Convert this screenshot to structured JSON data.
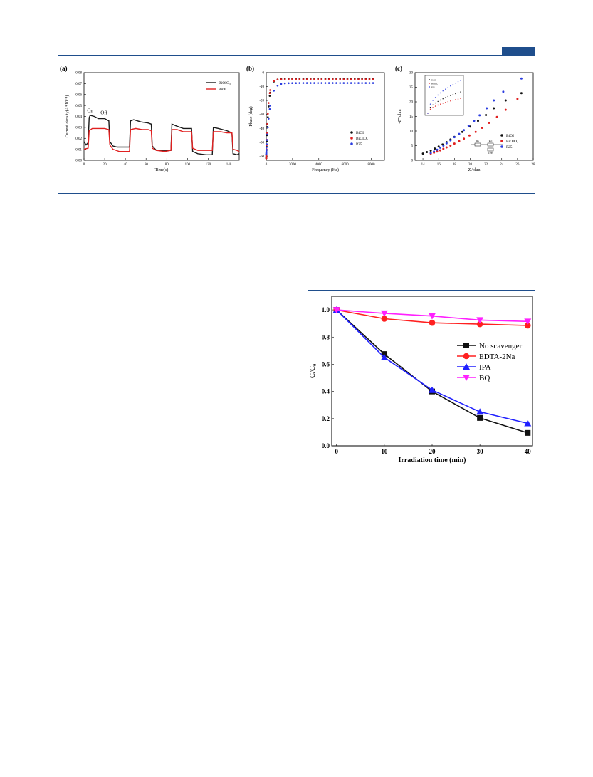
{
  "page": {
    "accent": "#1f4e8c"
  },
  "chart_data": [
    {
      "type": "line",
      "panel": "(a)",
      "xlabel": "Time(s)",
      "ylabel": "Current density(A*10⁻⁴)",
      "xlim": [
        0,
        150
      ],
      "ylim": [
        0,
        0.08
      ],
      "xticks": [
        "0",
        "20",
        "40",
        "60",
        "80",
        "100",
        "120",
        "140"
      ],
      "yticks": [
        "0.00",
        "0.01",
        "0.02",
        "0.03",
        "0.04",
        "0.05",
        "0.06",
        "0.07",
        "0.08"
      ],
      "legend_position": "top-right",
      "annotations": [
        "On",
        "Off"
      ],
      "series": [
        {
          "name": "BiOIO₃",
          "color": "#1a1a1a",
          "points": [
            [
              0,
              0.017
            ],
            [
              2,
              0.014
            ],
            [
              4,
              0.016
            ],
            [
              5,
              0.039
            ],
            [
              6,
              0.041
            ],
            [
              10,
              0.04
            ],
            [
              14,
              0.038
            ],
            [
              20,
              0.038
            ],
            [
              24,
              0.036
            ],
            [
              25,
              0.017
            ],
            [
              28,
              0.013
            ],
            [
              32,
              0.012
            ],
            [
              38,
              0.012
            ],
            [
              44,
              0.012
            ],
            [
              45,
              0.036
            ],
            [
              48,
              0.037
            ],
            [
              55,
              0.035
            ],
            [
              62,
              0.034
            ],
            [
              65,
              0.033
            ],
            [
              66,
              0.013
            ],
            [
              70,
              0.009
            ],
            [
              78,
              0.009
            ],
            [
              84,
              0.009
            ],
            [
              85,
              0.033
            ],
            [
              90,
              0.031
            ],
            [
              96,
              0.029
            ],
            [
              104,
              0.029
            ],
            [
              105,
              0.008
            ],
            [
              110,
              0.006
            ],
            [
              118,
              0.005
            ],
            [
              124,
              0.005
            ],
            [
              125,
              0.03
            ],
            [
              130,
              0.029
            ],
            [
              138,
              0.027
            ],
            [
              143,
              0.025
            ],
            [
              144,
              0.006
            ],
            [
              148,
              0.005
            ],
            [
              150,
              0.006
            ]
          ]
        },
        {
          "name": "BiOI",
          "color": "#e02020",
          "points": [
            [
              0,
              0.01
            ],
            [
              4,
              0.011
            ],
            [
              5,
              0.027
            ],
            [
              8,
              0.029
            ],
            [
              14,
              0.029
            ],
            [
              20,
              0.029
            ],
            [
              24,
              0.028
            ],
            [
              25,
              0.014
            ],
            [
              28,
              0.01
            ],
            [
              34,
              0.008
            ],
            [
              44,
              0.008
            ],
            [
              45,
              0.028
            ],
            [
              50,
              0.029
            ],
            [
              56,
              0.028
            ],
            [
              62,
              0.028
            ],
            [
              65,
              0.027
            ],
            [
              66,
              0.011
            ],
            [
              70,
              0.009
            ],
            [
              78,
              0.008
            ],
            [
              84,
              0.009
            ],
            [
              85,
              0.028
            ],
            [
              90,
              0.028
            ],
            [
              96,
              0.026
            ],
            [
              104,
              0.026
            ],
            [
              105,
              0.011
            ],
            [
              110,
              0.009
            ],
            [
              118,
              0.009
            ],
            [
              124,
              0.009
            ],
            [
              125,
              0.026
            ],
            [
              132,
              0.026
            ],
            [
              138,
              0.025
            ],
            [
              143,
              0.025
            ],
            [
              144,
              0.01
            ],
            [
              148,
              0.009
            ],
            [
              150,
              0.008
            ]
          ]
        }
      ]
    },
    {
      "type": "scatter",
      "panel": "(b)",
      "xlabel": "Frequency (Hz)",
      "ylabel": "Phase (deg)",
      "xlim": [
        0,
        9000
      ],
      "ylim": [
        -63,
        0
      ],
      "xticks": [
        "0",
        "2000",
        "4000",
        "6000",
        "8000"
      ],
      "yticks": [
        "0",
        "-10",
        "-20",
        "-30",
        "-40",
        "-50",
        "-60"
      ],
      "legend_position": "bottom-right",
      "series": [
        {
          "name": "BiOI",
          "color": "#111111"
        },
        {
          "name": "BiOIO₃",
          "color": "#e02020"
        },
        {
          "name": "P25",
          "color": "#2b3de0"
        }
      ]
    },
    {
      "type": "scatter",
      "panel": "(c)",
      "xlabel": "Z'/ohm",
      "ylabel": "-Z''/ohm",
      "xlim": [
        13,
        28
      ],
      "ylim": [
        0,
        30
      ],
      "xticks": [
        "14",
        "16",
        "18",
        "20",
        "22",
        "24",
        "26",
        "28"
      ],
      "yticks": [
        "0",
        "5",
        "10",
        "15",
        "20",
        "25",
        "30"
      ],
      "legend_position": "bottom-right",
      "circuit_labels": [
        "Rs",
        "Rct",
        "CPE"
      ],
      "series": [
        {
          "name": "BiOI",
          "color": "#111111",
          "x": [
            14.0,
            14.5,
            15.0,
            15.5,
            16.0,
            16.5,
            17.0,
            17.5,
            18.0,
            19.0,
            20.0,
            21.0,
            22.0,
            23.0,
            24.5,
            26.5
          ],
          "y": [
            2.3,
            2.8,
            3.3,
            4.0,
            4.7,
            5.4,
            6.2,
            7.1,
            8.0,
            9.7,
            11.5,
            13.5,
            15.5,
            17.8,
            20.5,
            23.0
          ]
        },
        {
          "name": "BiOIO₃",
          "color": "#e02020",
          "x": [
            15.0,
            15.4,
            15.8,
            16.2,
            16.6,
            17.0,
            17.5,
            18.0,
            18.6,
            19.2,
            19.9,
            20.7,
            21.5,
            22.4,
            23.4,
            24.5,
            26.0
          ],
          "y": [
            2.3,
            2.6,
            3.0,
            3.4,
            3.9,
            4.4,
            5.0,
            5.7,
            6.5,
            7.4,
            8.5,
            9.7,
            11.1,
            12.8,
            14.8,
            17.3,
            21.0
          ]
        },
        {
          "name": "P25",
          "color": "#2b3de0",
          "x": [
            15.0,
            15.4,
            15.8,
            16.2,
            16.6,
            17.0,
            17.5,
            18.0,
            18.6,
            19.2,
            19.8,
            20.5,
            21.2,
            22.1,
            23.0,
            24.2,
            26.5
          ],
          "y": [
            2.5,
            3.0,
            3.6,
            4.3,
            5.0,
            5.8,
            6.8,
            7.9,
            9.0,
            10.3,
            11.8,
            13.5,
            15.4,
            17.8,
            20.5,
            23.5,
            28.0
          ]
        }
      ],
      "inset": {
        "series_names": [
          "BiOI",
          "BiOIO₃",
          "P25"
        ]
      }
    },
    {
      "type": "line",
      "panel": "",
      "xlabel": "Irradiation time (min)",
      "ylabel": "C/C₀",
      "xlim": [
        -1,
        41
      ],
      "ylim": [
        0,
        1.1
      ],
      "x": [
        0,
        10,
        20,
        30,
        40
      ],
      "xticks": [
        "0",
        "10",
        "20",
        "30",
        "40"
      ],
      "yticks": [
        "0.0",
        "0.2",
        "0.4",
        "0.6",
        "0.8",
        "1.0"
      ],
      "legend_position": "center-right",
      "series": [
        {
          "name": "No scavenger",
          "color": "#111111",
          "marker": "square",
          "values": [
            1.0,
            0.675,
            0.4,
            0.205,
            0.095
          ]
        },
        {
          "name": "EDTA-2Na",
          "color": "#ff2020",
          "marker": "circle",
          "values": [
            1.0,
            0.935,
            0.905,
            0.895,
            0.885
          ]
        },
        {
          "name": "IPA",
          "color": "#2020ff",
          "marker": "triangle",
          "values": [
            1.0,
            0.65,
            0.41,
            0.25,
            0.165
          ]
        },
        {
          "name": "BQ",
          "color": "#ff20ff",
          "marker": "tri-down",
          "values": [
            1.0,
            0.975,
            0.955,
            0.925,
            0.915
          ]
        }
      ]
    }
  ]
}
